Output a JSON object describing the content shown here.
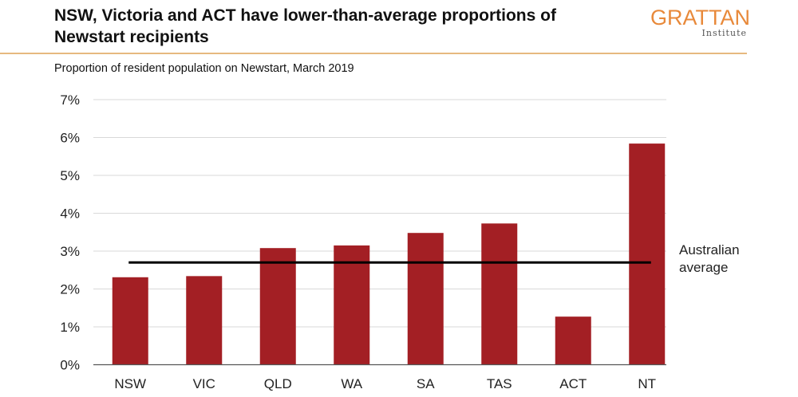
{
  "title": "NSW, Victoria and ACT have lower-than-average proportions of Newstart recipients",
  "logo": {
    "name": "GRATTAN",
    "sub": "Institute"
  },
  "chart_data": {
    "type": "bar",
    "title": "NSW, Victoria and ACT have lower-than-average proportions of Newstart recipients",
    "subtitle": "Proportion of resident population on Newstart, March 2019",
    "categories": [
      "NSW",
      "VIC",
      "QLD",
      "WA",
      "SA",
      "TAS",
      "ACT",
      "NT"
    ],
    "values": [
      2.31,
      2.34,
      3.08,
      3.15,
      3.48,
      3.73,
      1.27,
      5.84
    ],
    "unit": "%",
    "ylim": [
      0,
      7
    ],
    "yticks": [
      0,
      1,
      2,
      3,
      4,
      5,
      6,
      7
    ],
    "ytick_labels": [
      "0%",
      "1%",
      "2%",
      "3%",
      "4%",
      "5%",
      "6%",
      "7%"
    ],
    "grid": true,
    "reference_line": {
      "value": 2.7,
      "label": "Australian average"
    },
    "colors": {
      "bar": "#a31f24",
      "reference_line": "#000000",
      "grid": "#d9d9d9"
    }
  }
}
